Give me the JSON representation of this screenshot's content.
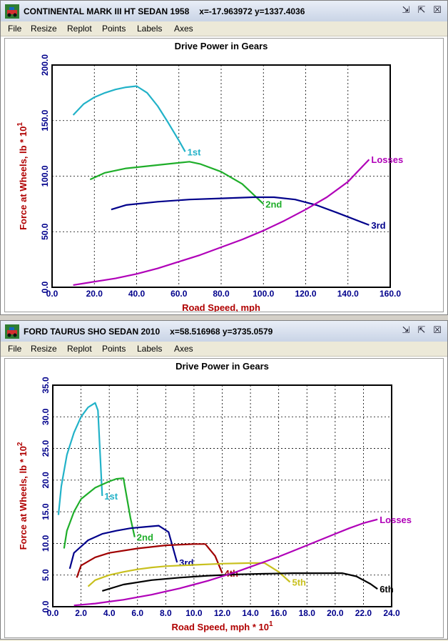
{
  "windows": [
    {
      "title": "CONTINENTAL MARK III HT SEDAN 1958",
      "coords": "x=-17.963972 y=1337.4036",
      "menu": [
        "File",
        "Resize",
        "Replot",
        "Points",
        "Labels",
        "Axes"
      ]
    },
    {
      "title": "FORD TAURUS SHO SEDAN 2010",
      "coords": "x=58.516968 y=3735.0579",
      "menu": [
        "File",
        "Resize",
        "Replot",
        "Points",
        "Labels",
        "Axes"
      ]
    }
  ],
  "colors": {
    "gear1": "#22b2c8",
    "gear2": "#1fae2a",
    "gear3": "#00008b",
    "gear4": "#a00000",
    "gear5": "#c8c01e",
    "gear6": "#000000",
    "losses": "#b000b8",
    "axis_label": "#b00000",
    "tick_label": "#00008b"
  },
  "chart_data": [
    {
      "type": "line",
      "title": "Drive Power in Gears",
      "xlabel": "Road Speed, mph",
      "ylabel": "Force at Wheels, lb * 10",
      "ylabel_exp": "1",
      "xlim": [
        0,
        160
      ],
      "ylim": [
        0,
        200
      ],
      "xticks": [
        "0.0",
        "20.0",
        "40.0",
        "60.0",
        "80.0",
        "100.0",
        "120.0",
        "140.0",
        "160.0"
      ],
      "yticks": [
        "0.0",
        "50.0",
        "100.0",
        "150.0",
        "200.0"
      ],
      "grid": true,
      "series": [
        {
          "name": "1st",
          "color_key": "gear1",
          "x": [
            10,
            15,
            20,
            25,
            30,
            35,
            40,
            45,
            50,
            55,
            60,
            63
          ],
          "y": [
            155,
            165,
            171,
            175,
            178,
            180,
            181,
            175,
            163,
            148,
            132,
            122
          ]
        },
        {
          "name": "2nd",
          "color_key": "gear2",
          "x": [
            18,
            25,
            35,
            45,
            55,
            65,
            70,
            80,
            90,
            100
          ],
          "y": [
            97,
            103,
            107,
            109,
            111,
            113,
            111,
            104,
            93,
            75
          ]
        },
        {
          "name": "3rd",
          "color_key": "gear3",
          "x": [
            28,
            35,
            50,
            65,
            80,
            95,
            105,
            115,
            125,
            135,
            150
          ],
          "y": [
            70,
            74,
            77,
            79,
            80,
            81,
            81,
            79,
            74,
            67,
            56
          ]
        },
        {
          "name": "Losses",
          "color_key": "losses",
          "x": [
            10,
            20,
            30,
            40,
            50,
            60,
            70,
            80,
            90,
            100,
            110,
            120,
            130,
            140,
            150
          ],
          "y": [
            2,
            5,
            8,
            12,
            17,
            23,
            29,
            36,
            43,
            51,
            60,
            70,
            81,
            95,
            115
          ]
        }
      ]
    },
    {
      "type": "line",
      "title": "Drive Power in Gears",
      "xlabel": "Road Speed, mph * 10",
      "xlabel_exp": "1",
      "ylabel": "Force at Wheels, lb * 10",
      "ylabel_exp": "2",
      "xlim": [
        0,
        24
      ],
      "ylim": [
        0,
        35
      ],
      "xticks": [
        "0.0",
        "2.0",
        "4.0",
        "6.0",
        "8.0",
        "10.0",
        "12.0",
        "14.0",
        "16.0",
        "18.0",
        "20.0",
        "22.0",
        "24.0"
      ],
      "yticks": [
        "0.0",
        "5.0",
        "10.0",
        "15.0",
        "20.0",
        "25.0",
        "30.0",
        "35.0"
      ],
      "grid": true,
      "series": [
        {
          "name": "1st",
          "color_key": "gear1",
          "x": [
            0.4,
            0.6,
            1.0,
            1.5,
            2.0,
            2.5,
            3.0,
            3.2,
            3.5
          ],
          "y": [
            14.5,
            19,
            24,
            27.5,
            30,
            31.5,
            32.2,
            31,
            17.5
          ]
        },
        {
          "name": "2nd",
          "color_key": "gear2",
          "x": [
            0.8,
            1.0,
            1.5,
            2.0,
            3.0,
            4.0,
            4.5,
            5.0,
            5.5,
            5.8
          ],
          "y": [
            9.2,
            12,
            15,
            17,
            18.8,
            19.8,
            20.2,
            20.3,
            14,
            11
          ]
        },
        {
          "name": "3rd",
          "color_key": "gear3",
          "x": [
            1.2,
            1.5,
            2.5,
            3.5,
            4.5,
            5.5,
            6.5,
            7.5,
            8.2,
            8.8
          ],
          "y": [
            6,
            8.5,
            10.5,
            11.5,
            12,
            12.4,
            12.6,
            12.8,
            11.8,
            7
          ]
        },
        {
          "name": "4th",
          "color_key": "gear4",
          "x": [
            1.7,
            2.0,
            3.0,
            4.0,
            6.0,
            8.0,
            10.0,
            10.8,
            11.5,
            12.0
          ],
          "y": [
            4.6,
            6.5,
            7.8,
            8.5,
            9.2,
            9.7,
            9.9,
            9.9,
            8,
            5.3
          ]
        },
        {
          "name": "5th",
          "color_key": "gear5",
          "x": [
            2.5,
            3.0,
            4.0,
            5.0,
            6.0,
            7.0,
            8.0,
            9.0,
            10.0,
            12.0,
            14.0,
            15.0,
            16.0,
            16.8
          ],
          "y": [
            3.2,
            4.2,
            5.0,
            5.5,
            5.9,
            6.2,
            6.4,
            6.5,
            6.6,
            6.8,
            6.9,
            6.9,
            5.5,
            3.9
          ]
        },
        {
          "name": "6th",
          "color_key": "gear6",
          "x": [
            3.5,
            5.0,
            7.0,
            9.0,
            11.0,
            13.0,
            15.0,
            17.0,
            19.0,
            20.5,
            21.5,
            22.5,
            23.0
          ],
          "y": [
            2.5,
            3.5,
            4.2,
            4.6,
            4.9,
            5.1,
            5.2,
            5.3,
            5.3,
            5.3,
            4.8,
            3.6,
            2.8
          ]
        },
        {
          "name": "Losses",
          "color_key": "losses",
          "x": [
            1.5,
            3,
            4,
            5,
            6,
            7,
            8,
            9,
            10,
            11,
            12,
            13,
            14,
            15,
            16,
            17,
            18,
            19,
            20,
            21,
            22,
            23
          ],
          "y": [
            0.2,
            0.5,
            0.8,
            1.1,
            1.5,
            1.9,
            2.4,
            2.9,
            3.5,
            4.1,
            4.8,
            5.5,
            6.3,
            7.1,
            7.9,
            8.8,
            9.7,
            10.6,
            11.5,
            12.4,
            13.2,
            13.8
          ]
        }
      ]
    }
  ]
}
